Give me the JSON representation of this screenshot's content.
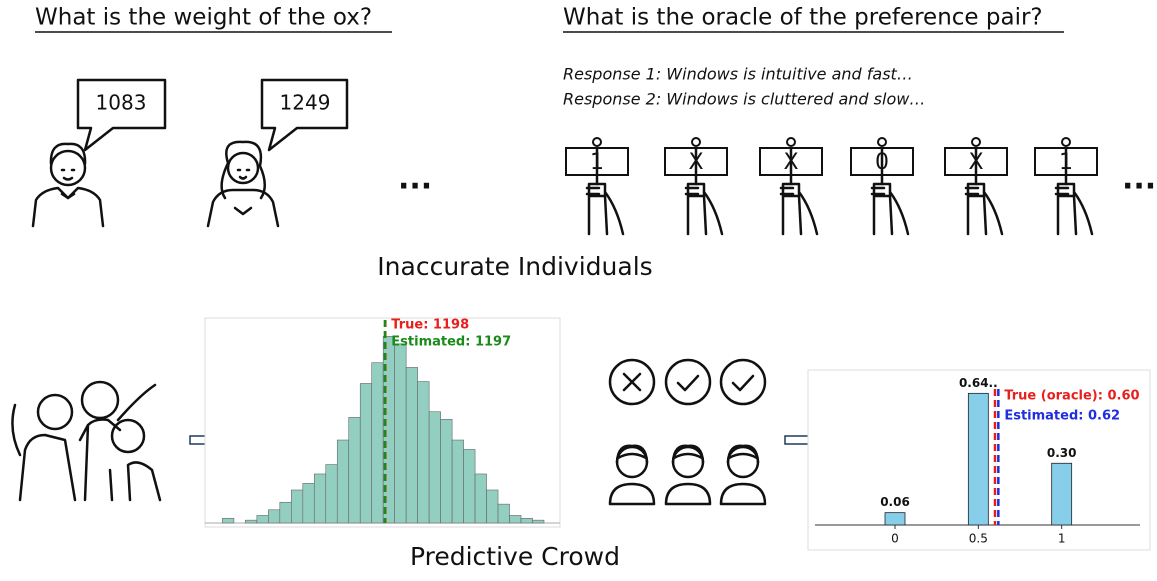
{
  "headings": [
    "What is the weight of the ox?",
    "What is the oracle of the preference pair?"
  ],
  "guesses": [
    "1083",
    "1249"
  ],
  "responses": [
    "Response 1: Windows is intuitive and fast…",
    "Response 2: Windows is cluttered and slow…"
  ],
  "signs": [
    "1",
    "X",
    "X",
    "0",
    "X",
    "1"
  ],
  "ellipsis": "...",
  "captions": [
    "Inaccurate Individuals",
    "Predictive Crowd"
  ],
  "chart_data": [
    {
      "type": "histogram",
      "bins": [
        730,
        763,
        796,
        829,
        862,
        895,
        928,
        961,
        994,
        1027,
        1060,
        1093,
        1126,
        1159,
        1192,
        1225,
        1258,
        1291,
        1324,
        1357,
        1390,
        1423,
        1456,
        1489,
        1522,
        1555,
        1588,
        1621,
        1654
      ],
      "values": [
        5,
        0,
        3,
        8,
        14,
        22,
        35,
        42,
        52,
        62,
        88,
        112,
        148,
        170,
        198,
        190,
        165,
        150,
        118,
        110,
        88,
        78,
        52,
        35,
        20,
        8,
        5,
        3
      ],
      "color": "#93cfc0",
      "xlim": [
        680,
        1700
      ],
      "ylim": [
        0,
        210
      ],
      "lines": [
        {
          "value": 1198,
          "label": "True: 1198",
          "color": "#e8201c"
        },
        {
          "value": 1197,
          "label": "Estimated: 1197",
          "color": "#1a8a1a"
        }
      ]
    },
    {
      "type": "bar",
      "x": [
        0,
        0.5,
        1
      ],
      "values": [
        0.06,
        0.64,
        0.3
      ],
      "value_labels": [
        "0.06",
        "0.64..",
        "0.30"
      ],
      "color": "#87ceeb",
      "xlim": [
        -0.48,
        1.47
      ],
      "ylim": [
        0,
        0.7
      ],
      "xticks": [
        0,
        0.5,
        1
      ],
      "lines": [
        {
          "value": 0.6,
          "label": "True (oracle): 0.60",
          "color": "#e8201c"
        },
        {
          "value": 0.62,
          "label": "Estimated: 0.62",
          "color": "#1f2ee0"
        }
      ]
    }
  ]
}
